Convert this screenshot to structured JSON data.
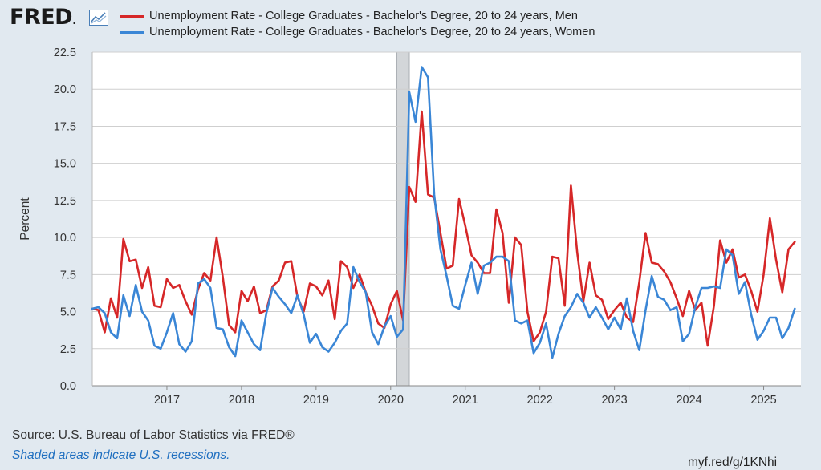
{
  "header": {
    "logo_text": "FRED",
    "logo_suffix": ".",
    "logo_icon": "line-chart-icon"
  },
  "colors": {
    "men": "#d62728",
    "women": "#3a86d6",
    "recession": "#d3d6d9",
    "grid": "#cfcfcf",
    "background": "#e1e9f0",
    "plot_bg": "#ffffff"
  },
  "footer": {
    "source": "Source: U.S. Bureau of Labor Statistics via FRED®",
    "note": "Shaded areas indicate U.S. recessions.",
    "url": "myf.red/g/1KNhi"
  },
  "chart_data": {
    "type": "line",
    "title": "",
    "xlabel": "",
    "ylabel": "Percent",
    "ylim": [
      0,
      22.5
    ],
    "yticks": [
      "0.0",
      "2.5",
      "5.0",
      "7.5",
      "10.0",
      "12.5",
      "15.0",
      "17.5",
      "20.0",
      "22.5"
    ],
    "xlim": [
      "2016-01",
      "2025-07"
    ],
    "xticks": [
      "2017",
      "2018",
      "2019",
      "2020",
      "2021",
      "2022",
      "2023",
      "2024",
      "2025"
    ],
    "grid": "horizontal",
    "legend": "top",
    "recessions": [
      {
        "start": "2020-02",
        "end": "2020-04"
      }
    ],
    "start_month": "2016-01",
    "series": [
      {
        "name": "Unemployment Rate - College Graduates - Bachelor's Degree, 20 to 24 years, Men",
        "values": [
          5.2,
          5.1,
          3.6,
          5.9,
          4.6,
          9.9,
          8.4,
          8.5,
          6.6,
          8.0,
          5.4,
          5.3,
          7.2,
          6.6,
          6.8,
          5.7,
          4.8,
          6.5,
          7.6,
          7.1,
          10.0,
          7.3,
          4.1,
          3.6,
          6.4,
          5.7,
          6.7,
          4.9,
          5.1,
          6.7,
          7.1,
          8.3,
          8.4,
          6.0,
          5.0,
          6.9,
          6.7,
          6.1,
          7.1,
          4.5,
          8.4,
          8.0,
          6.6,
          7.5,
          6.3,
          5.4,
          4.2,
          3.9,
          5.5,
          6.4,
          4.4,
          13.4,
          12.4,
          18.5,
          12.9,
          12.7,
          10.3,
          7.9,
          8.1,
          12.6,
          10.8,
          8.8,
          8.3,
          7.6,
          7.6,
          11.9,
          10.3,
          5.6,
          10.0,
          9.5,
          5.0,
          3.0,
          3.6,
          5.0,
          8.7,
          8.6,
          5.4,
          13.5,
          9.0,
          5.7,
          8.3,
          6.1,
          5.8,
          4.5,
          5.1,
          5.6,
          4.6,
          4.3,
          7.0,
          10.3,
          8.3,
          8.2,
          7.7,
          7.0,
          5.9,
          4.7,
          6.4,
          5.1,
          5.6,
          2.7,
          5.4,
          9.8,
          8.3,
          9.2,
          7.3,
          7.5,
          6.4,
          5.0,
          7.5,
          11.3,
          8.5,
          6.3,
          9.2,
          9.7
        ]
      },
      {
        "name": "Unemployment Rate - College Graduates - Bachelor's Degree, 20 to 24 years, Women",
        "values": [
          5.2,
          5.3,
          4.9,
          3.6,
          3.2,
          6.1,
          4.7,
          6.8,
          5.0,
          4.4,
          2.7,
          2.5,
          3.6,
          4.9,
          2.8,
          2.3,
          3.0,
          6.9,
          7.2,
          6.6,
          3.9,
          3.8,
          2.6,
          2.0,
          4.4,
          3.6,
          2.8,
          2.4,
          4.9,
          6.6,
          6.0,
          5.5,
          4.9,
          6.1,
          4.8,
          2.9,
          3.5,
          2.6,
          2.3,
          2.9,
          3.7,
          4.2,
          8.0,
          7.0,
          6.3,
          3.6,
          2.8,
          4.0,
          4.7,
          3.3,
          3.8,
          19.8,
          17.8,
          21.5,
          20.8,
          12.9,
          9.2,
          7.4,
          5.4,
          5.2,
          6.8,
          8.3,
          6.2,
          8.1,
          8.3,
          8.7,
          8.7,
          8.4,
          4.4,
          4.2,
          4.4,
          2.2,
          2.9,
          4.2,
          1.9,
          3.5,
          4.7,
          5.3,
          6.2,
          5.6,
          4.6,
          5.3,
          4.6,
          3.8,
          4.6,
          3.8,
          5.9,
          3.7,
          2.4,
          5.1,
          7.4,
          6.0,
          5.8,
          5.1,
          5.3,
          3.0,
          3.5,
          5.3,
          6.6,
          6.6,
          6.7,
          6.6,
          9.2,
          8.8,
          6.2,
          7.0,
          4.8,
          3.1,
          3.7,
          4.6,
          4.6,
          3.2,
          3.9,
          5.2
        ]
      }
    ]
  }
}
